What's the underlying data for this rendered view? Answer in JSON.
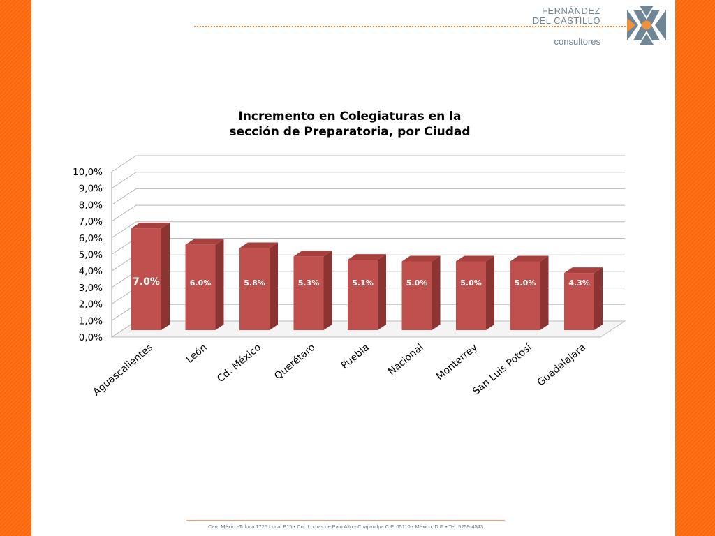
{
  "header": {
    "logo_line_1": "FERNÁNDEZ",
    "logo_line_2": "DEL CASTILLO",
    "logo_sub": "consultores",
    "logo_icon": "x-mark-icon"
  },
  "footer": {
    "address": "Carr. México-Toluca 1725 Local B15 • Col. Lomas de Palo Alto • Cuajimalpa C.P. 05110 • México, D.F. • Tel. 5259-4543"
  },
  "colors": {
    "background": "#ff6a0d",
    "bar_front": "#c0504d",
    "bar_side": "#8c3431",
    "bar_top": "#a8403d",
    "logo": "#6f8696",
    "logo_accent": "#f0923c"
  },
  "chart_data": {
    "type": "bar",
    "title_line_1": "Incremento en Colegiaturas en la",
    "title_line_2": "sección de Preparatoria, por Ciudad",
    "categories": [
      "Aguascalientes",
      "León",
      "Cd. México",
      "Querétaro",
      "Puebla",
      "Nacional",
      "Monterrey",
      "San Luis Potosí",
      "Guadalajara"
    ],
    "values": [
      7.0,
      6.0,
      5.8,
      5.3,
      5.1,
      5.0,
      5.0,
      5.0,
      4.3
    ],
    "data_labels": [
      "7.0%",
      "6.0%",
      "5.8%",
      "5.3%",
      "5.1%",
      "5.0%",
      "5.0%",
      "5.0%",
      "4.3%"
    ],
    "y_ticks": [
      "0,0%",
      "1,0%",
      "2,0%",
      "3,0%",
      "4,0%",
      "5,0%",
      "6,0%",
      "7,0%",
      "8,0%",
      "9,0%",
      "10,0%"
    ],
    "ylim": [
      0,
      10
    ],
    "grid": true,
    "legend": false,
    "style": "3d"
  }
}
